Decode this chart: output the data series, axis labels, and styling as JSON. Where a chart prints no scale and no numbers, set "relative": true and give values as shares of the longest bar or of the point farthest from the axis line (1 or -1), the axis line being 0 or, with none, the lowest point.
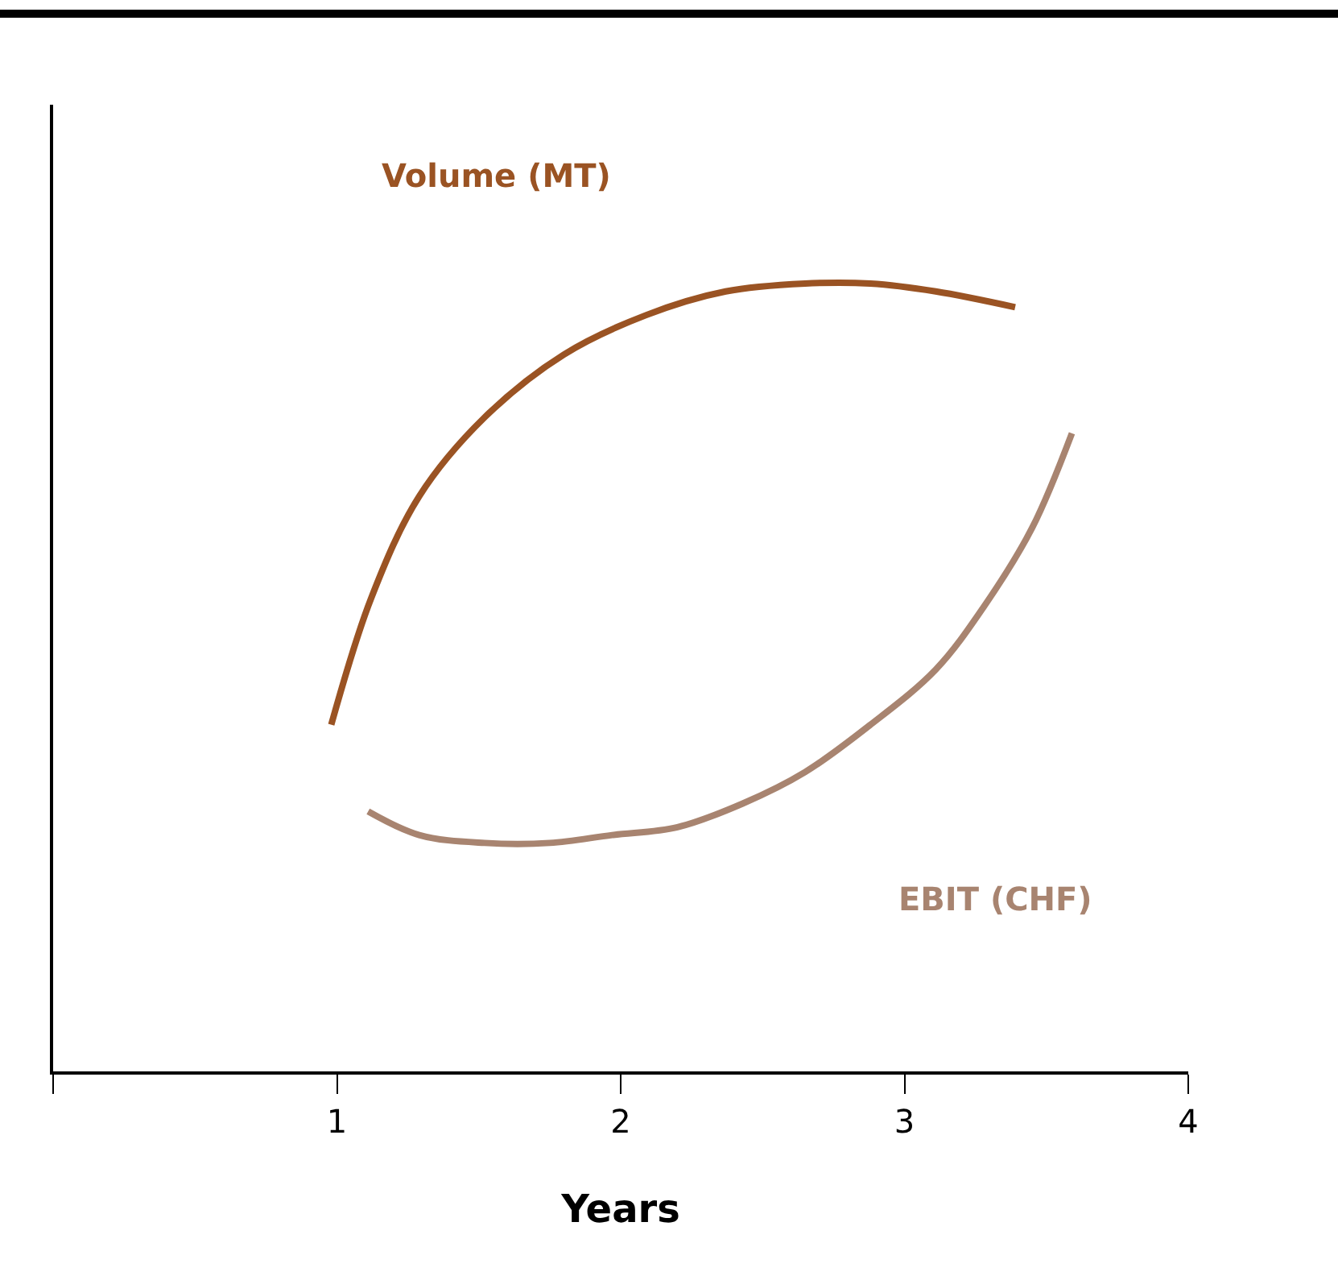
{
  "chart_data": {
    "type": "line",
    "relative": true,
    "xlabel": "Years",
    "xlim": [
      0,
      4
    ],
    "xticks": [
      {
        "value": 0,
        "label": null
      },
      1,
      2,
      3,
      4
    ],
    "grid": false,
    "legend": false,
    "marker": "none",
    "line_style": "solid",
    "series": [
      {
        "name": "Volume (MT)",
        "color": "#9a5323",
        "x": [
          0.98,
          1.12,
          1.29,
          1.52,
          1.8,
          2.09,
          2.37,
          2.65,
          2.88,
          3.11,
          3.39
        ],
        "values": [
          0.44,
          0.6,
          0.73,
          0.83,
          0.91,
          0.96,
          0.99,
          1.0,
          1.0,
          0.99,
          0.97
        ]
      },
      {
        "name": "EBIT (CHF)",
        "color": "#a88470",
        "x": [
          1.11,
          1.29,
          1.52,
          1.75,
          1.97,
          2.2,
          2.43,
          2.65,
          2.88,
          3.11,
          3.28,
          3.45,
          3.59
        ],
        "values": [
          0.33,
          0.3,
          0.29,
          0.29,
          0.3,
          0.31,
          0.34,
          0.38,
          0.44,
          0.51,
          0.59,
          0.69,
          0.81
        ]
      }
    ]
  }
}
